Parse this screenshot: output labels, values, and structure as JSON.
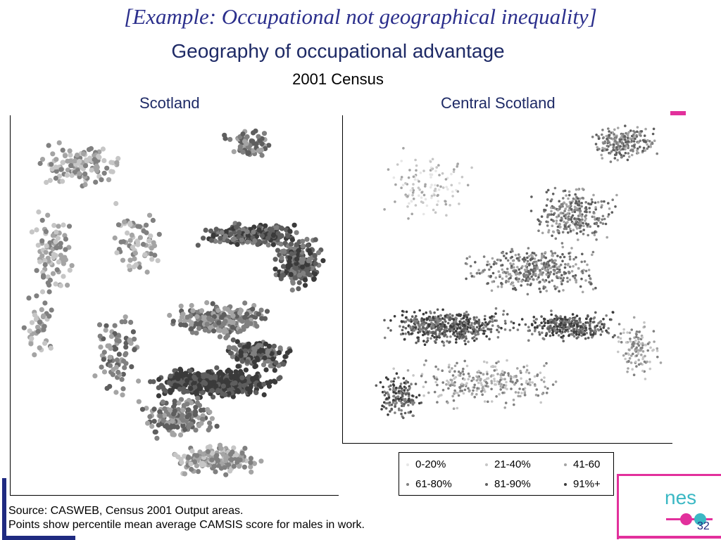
{
  "slide": {
    "title": "[Example: Occupational not geographical inequality]",
    "page_number": "32",
    "logo_text": "nes",
    "source_line_1": "Source: CASWEB, Census 2001 Output areas.",
    "source_line_2": "Points show percentile mean average CAMSIS score for males in work."
  },
  "chart_data": {
    "type": "scatter",
    "title": "Geography of occupational advantage",
    "subtitle": "2001 Census",
    "legend": {
      "placement": "bottom-right",
      "entries": [
        {
          "label": "0-20%",
          "color": "#e6e6e6"
        },
        {
          "label": "21-40%",
          "color": "#c6c6c6"
        },
        {
          "label": "41-60",
          "color": "#a4a4a4"
        },
        {
          "label": "61-80%",
          "color": "#808080"
        },
        {
          "label": "81-90%",
          "color": "#5e5e5e"
        },
        {
          "label": "91%+",
          "color": "#3a3a3a"
        }
      ]
    },
    "panels": [
      {
        "title": "Scotland",
        "marker": "large"
      },
      {
        "title": "Central Scotland",
        "marker": "small"
      }
    ]
  },
  "colors": {
    "title_blue": "#2b2f8c",
    "accent_pink": "#e2309c",
    "accent_teal": "#3bb8c4",
    "frame_navy": "#1f2a80"
  }
}
